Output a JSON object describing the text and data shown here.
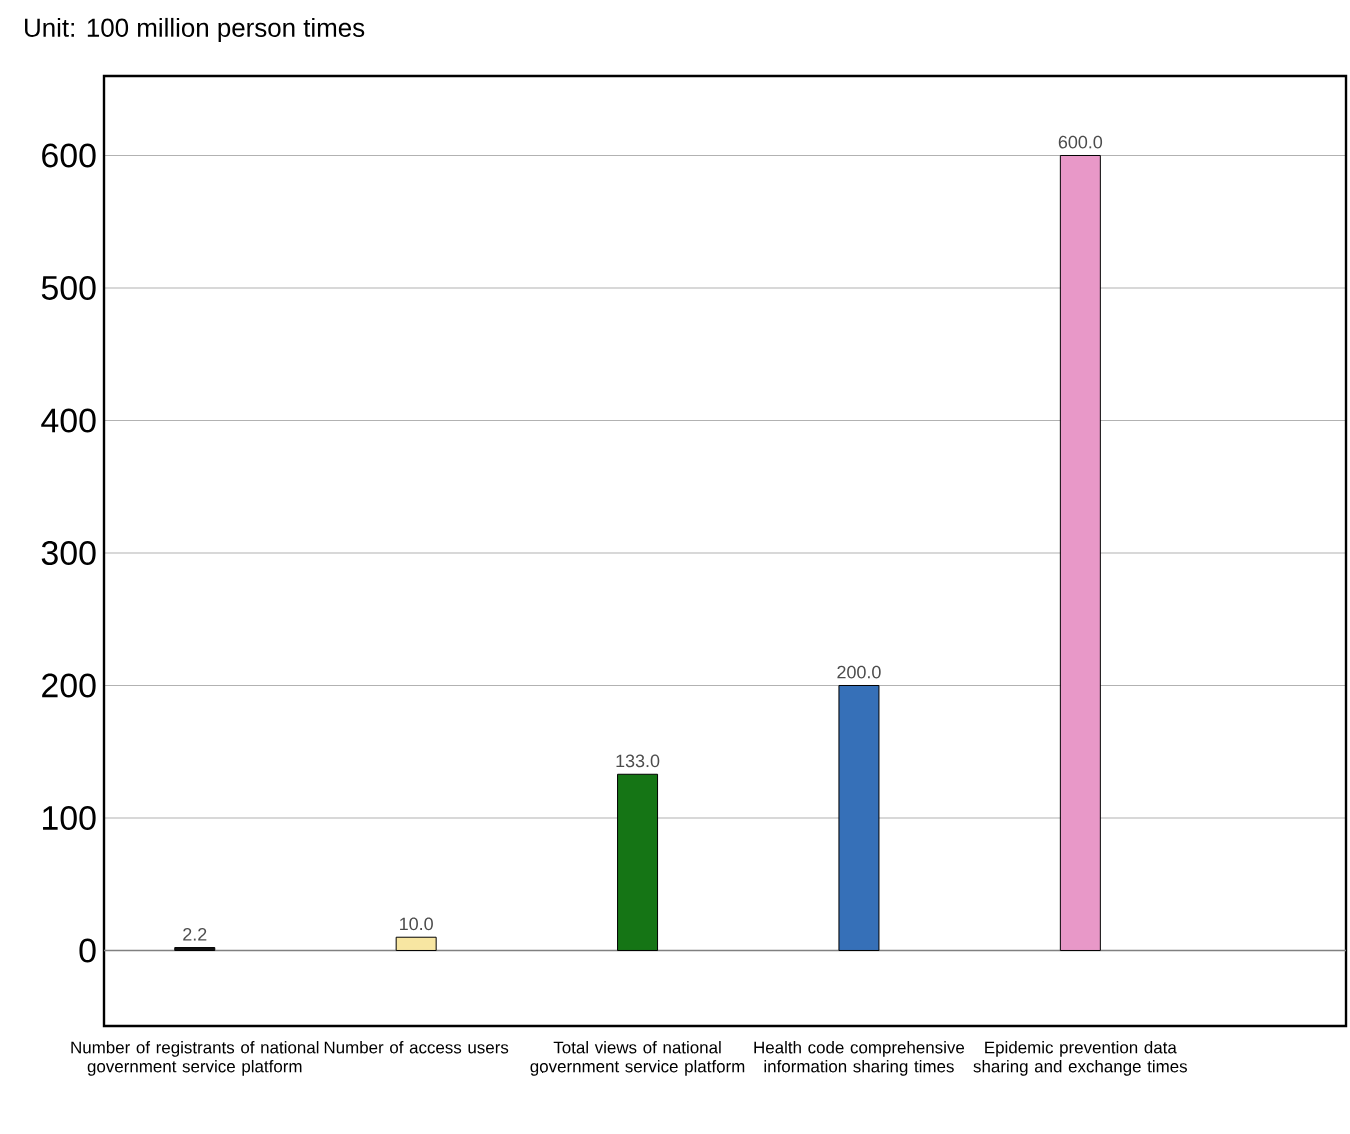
{
  "chart_data": {
    "type": "bar",
    "title": "Unit: 100 million person times",
    "categories": [
      "Number of registrants of national government service platform",
      "Number of access users",
      "Total views of national government service platform",
      "Health code comprehensive information sharing times",
      "Epidemic prevention data sharing and exchange times"
    ],
    "values": [
      2.2,
      10,
      133,
      200,
      600
    ],
    "colors": [
      "#111111",
      "#f7e6a2",
      "#157515",
      "#3670b8",
      "#e898c8"
    ],
    "value_labels": [
      "2.2",
      "10.0",
      "133.0",
      "200.0",
      "600.0"
    ],
    "ylim": [
      -57,
      660
    ],
    "yticks": [
      0,
      100,
      200,
      300,
      400,
      500,
      600
    ],
    "grid": "y"
  }
}
